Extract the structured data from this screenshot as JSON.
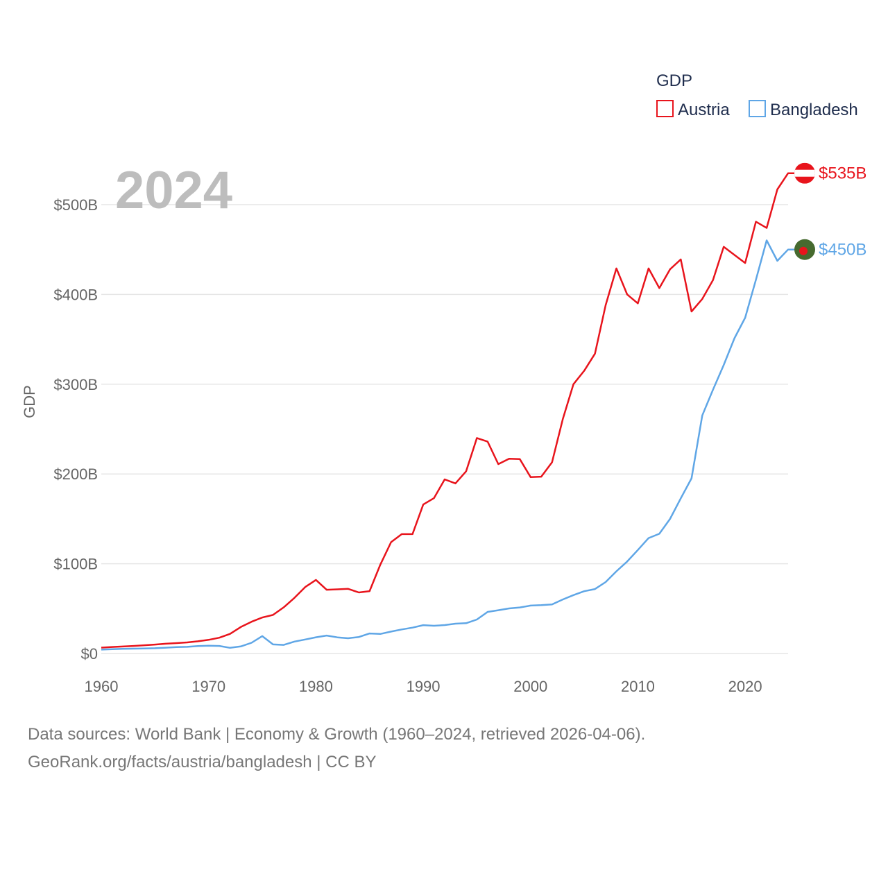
{
  "chart_data": {
    "type": "line",
    "title": "GDP",
    "ylabel": "GDP",
    "xlabel": "",
    "year_label": "2024",
    "xlim": [
      1960,
      2024
    ],
    "ylim": [
      0,
      550
    ],
    "x_ticks": [
      1960,
      1970,
      1980,
      1990,
      2000,
      2010,
      2020
    ],
    "y_ticks": [
      {
        "value": 0,
        "label": "$0"
      },
      {
        "value": 100,
        "label": "$100B"
      },
      {
        "value": 200,
        "label": "$200B"
      },
      {
        "value": 300,
        "label": "$300B"
      },
      {
        "value": 400,
        "label": "$400B"
      },
      {
        "value": 500,
        "label": "$500B"
      }
    ],
    "legend": {
      "title": "GDP",
      "placement": "top-right"
    },
    "series": [
      {
        "name": "Austria",
        "color": "#e8141c",
        "end_label": "$535B",
        "flag": "austria-flag",
        "x": [
          1960,
          1961,
          1962,
          1963,
          1964,
          1965,
          1966,
          1967,
          1968,
          1969,
          1970,
          1971,
          1972,
          1973,
          1974,
          1975,
          1976,
          1977,
          1978,
          1979,
          1980,
          1981,
          1982,
          1983,
          1984,
          1985,
          1986,
          1987,
          1988,
          1989,
          1990,
          1991,
          1992,
          1993,
          1994,
          1995,
          1996,
          1997,
          1998,
          1999,
          2000,
          2001,
          2002,
          2003,
          2004,
          2005,
          2006,
          2007,
          2008,
          2009,
          2010,
          2011,
          2012,
          2013,
          2014,
          2015,
          2016,
          2017,
          2018,
          2019,
          2020,
          2021,
          2022,
          2023,
          2024
        ],
        "values": [
          6.6,
          7.3,
          7.8,
          8.4,
          9.2,
          10.0,
          10.9,
          11.6,
          12.4,
          13.6,
          15.2,
          17.6,
          21.9,
          29.5,
          35.4,
          40.1,
          43.0,
          51.5,
          62.0,
          74.0,
          82.0,
          71.0,
          71.5,
          72.0,
          68.0,
          69.5,
          99.0,
          124.0,
          133.0,
          133.0,
          166.0,
          173.0,
          194.0,
          189.5,
          203.0,
          240.0,
          236.0,
          211.0,
          217.0,
          216.5,
          196.5,
          197.0,
          213.0,
          261.0,
          300.0,
          315.0,
          334.0,
          388.0,
          429.0,
          400.0,
          390.0,
          429.0,
          407.0,
          428.0,
          439.0,
          381.0,
          395.0,
          416.0,
          453.0,
          444.0,
          435.0,
          481.0,
          474.0,
          517.0,
          535.0
        ]
      },
      {
        "name": "Bangladesh",
        "color": "#5fa6e6",
        "end_label": "$450B",
        "flag": "bangladesh-flag",
        "x": [
          1960,
          1961,
          1962,
          1963,
          1964,
          1965,
          1966,
          1967,
          1968,
          1969,
          1970,
          1971,
          1972,
          1973,
          1974,
          1975,
          1976,
          1977,
          1978,
          1979,
          1980,
          1981,
          1982,
          1983,
          1984,
          1985,
          1986,
          1987,
          1988,
          1989,
          1990,
          1991,
          1992,
          1993,
          1994,
          1995,
          1996,
          1997,
          1998,
          1999,
          2000,
          2001,
          2002,
          2003,
          2004,
          2005,
          2006,
          2007,
          2008,
          2009,
          2010,
          2011,
          2012,
          2013,
          2014,
          2015,
          2016,
          2017,
          2018,
          2019,
          2020,
          2021,
          2022,
          2023,
          2024
        ],
        "values": [
          4.3,
          4.9,
          5.2,
          5.4,
          5.6,
          5.9,
          6.5,
          7.2,
          7.4,
          8.3,
          8.7,
          8.4,
          6.3,
          7.9,
          12.0,
          19.4,
          10.1,
          9.6,
          13.3,
          15.6,
          18.1,
          20.0,
          18.0,
          17.0,
          18.4,
          22.3,
          21.8,
          24.4,
          26.8,
          28.8,
          31.6,
          30.9,
          31.7,
          33.2,
          33.8,
          37.9,
          46.4,
          48.2,
          50.2,
          51.3,
          53.4,
          53.9,
          54.7,
          60.2,
          65.1,
          69.4,
          71.8,
          79.6,
          91.6,
          102.5,
          115.3,
          128.6,
          133.4,
          149.9,
          172.9,
          195.1,
          265.2,
          293.8,
          321.4,
          351.2,
          374.0,
          416.3,
          460.2,
          437.4,
          450.0
        ]
      }
    ]
  },
  "source": {
    "line1": "Data sources: World Bank | Economy & Growth (1960–2024, retrieved 2026-04-06).",
    "line2": "GeoRank.org/facts/austria/bangladesh | CC BY"
  }
}
